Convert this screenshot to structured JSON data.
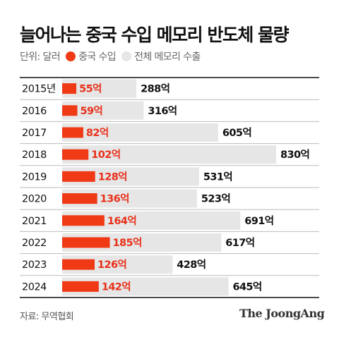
{
  "title": "늘어나는 중국 수입 메모리 반도체 물량",
  "legend": {
    "unit": "단위: 달러",
    "items": [
      {
        "label": "중국 수입",
        "color": "#f03a15"
      },
      {
        "label": "전체 메모리 수출",
        "color": "#e6e6e6"
      }
    ]
  },
  "source": "자료: 무역협회",
  "brand": "The JoongAng",
  "chart_data": {
    "type": "bar",
    "orientation": "horizontal",
    "categories": [
      "2015년",
      "2016",
      "2017",
      "2018",
      "2019",
      "2020",
      "2021",
      "2022",
      "2023",
      "2024"
    ],
    "series": [
      {
        "name": "중국 수입",
        "color": "#f03a15",
        "values": [
          55,
          59,
          82,
          102,
          128,
          136,
          164,
          185,
          126,
          142
        ],
        "labels": [
          "55억",
          "59억",
          "82억",
          "102억",
          "128억",
          "136억",
          "164억",
          "185억",
          "126억",
          "142억"
        ]
      },
      {
        "name": "전체 메모리 수출",
        "color": "#e6e6e6",
        "values": [
          288,
          316,
          605,
          830,
          531,
          523,
          691,
          617,
          428,
          645
        ],
        "labels": [
          "288억",
          "316억",
          "605억",
          "830억",
          "531억",
          "523억",
          "691억",
          "617억",
          "428억",
          "645억"
        ]
      }
    ],
    "xlim": [
      0,
      830
    ],
    "grid": false,
    "legend_position": "top-left"
  }
}
